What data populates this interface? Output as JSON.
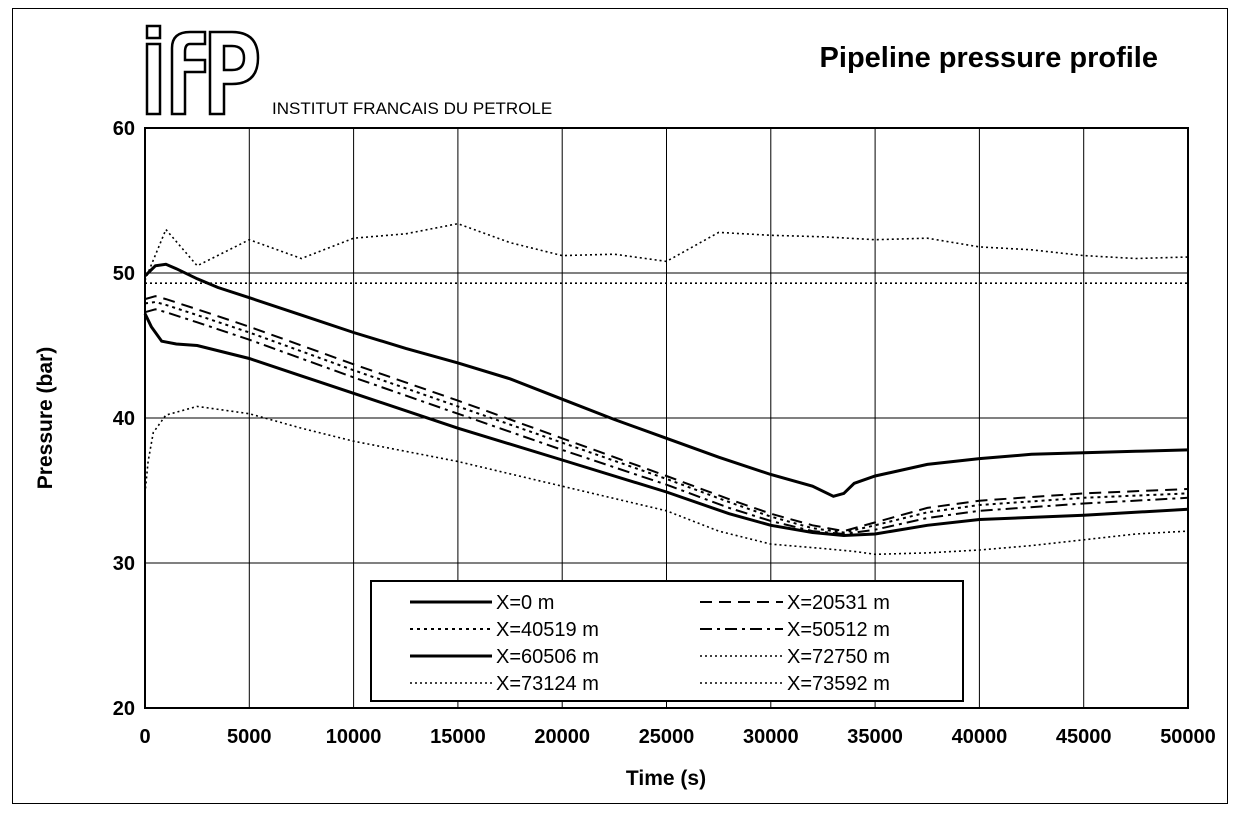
{
  "logo": {
    "text": "ifp",
    "caption": "INSTITUT FRANCAIS DU PETROLE"
  },
  "colors": {
    "ink": "#000000",
    "grid": "#000000",
    "background": "#ffffff"
  },
  "chart_data": {
    "type": "line",
    "title": "Pipeline pressure profile",
    "xlabel": "Time (s)",
    "ylabel": "Pressure (bar)",
    "xlim": [
      0,
      50000
    ],
    "ylim": [
      20,
      60
    ],
    "xticks": [
      0,
      5000,
      10000,
      15000,
      20000,
      25000,
      30000,
      35000,
      40000,
      45000,
      50000
    ],
    "yticks": [
      20,
      30,
      40,
      50,
      60
    ],
    "grid": true,
    "legend_position": "bottom-center",
    "series": [
      {
        "name": "X=0 m",
        "style": "solid",
        "width": 3,
        "x": [
          0,
          500,
          1000,
          1500,
          2500,
          3500,
          5000,
          7500,
          10000,
          12500,
          15000,
          17500,
          20000,
          22500,
          25000,
          27500,
          30000,
          32000,
          33000,
          33500,
          34000,
          35000,
          37500,
          40000,
          42500,
          45000,
          47500,
          50000
        ],
        "y": [
          49.8,
          50.5,
          50.6,
          50.3,
          49.6,
          49.0,
          48.3,
          47.1,
          45.9,
          44.8,
          43.8,
          42.7,
          41.3,
          39.9,
          38.6,
          37.3,
          36.1,
          35.3,
          34.6,
          34.8,
          35.5,
          36.0,
          36.8,
          37.2,
          37.5,
          37.6,
          37.7,
          37.8
        ]
      },
      {
        "name": "X=20531 m",
        "style": "dashed",
        "width": 2,
        "x": [
          0,
          500,
          1000,
          2500,
          5000,
          10000,
          15000,
          20000,
          25000,
          28000,
          30000,
          32000,
          33500,
          35000,
          37500,
          40000,
          45000,
          50000
        ],
        "y": [
          48.2,
          48.4,
          48.2,
          47.5,
          46.3,
          43.7,
          41.2,
          38.6,
          36.0,
          34.4,
          33.4,
          32.6,
          32.2,
          32.8,
          33.8,
          34.3,
          34.8,
          35.1
        ]
      },
      {
        "name": "X=40519 m",
        "style": "dotted",
        "width": 2,
        "x": [
          0,
          500,
          1000,
          2500,
          5000,
          10000,
          15000,
          20000,
          25000,
          28000,
          30000,
          32000,
          33500,
          35000,
          37500,
          40000,
          45000,
          50000
        ],
        "y": [
          47.9,
          48.0,
          47.8,
          47.1,
          45.9,
          43.3,
          40.8,
          38.3,
          35.8,
          34.2,
          33.2,
          32.4,
          32.1,
          32.6,
          33.5,
          34.0,
          34.5,
          34.8
        ]
      },
      {
        "name": "X=50512 m",
        "style": "dashdot",
        "width": 2,
        "x": [
          0,
          500,
          1000,
          2500,
          5000,
          10000,
          15000,
          20000,
          25000,
          28000,
          30000,
          32000,
          33500,
          35000,
          37500,
          40000,
          45000,
          50000
        ],
        "y": [
          47.3,
          47.5,
          47.3,
          46.6,
          45.4,
          42.8,
          40.3,
          37.8,
          35.4,
          33.8,
          32.9,
          32.2,
          32.0,
          32.3,
          33.1,
          33.6,
          34.1,
          34.5
        ]
      },
      {
        "name": "X=60506 m",
        "style": "solid",
        "width": 3,
        "x": [
          0,
          300,
          800,
          1500,
          2500,
          5000,
          7500,
          10000,
          15000,
          20000,
          25000,
          28000,
          30000,
          32000,
          33500,
          35000,
          37500,
          40000,
          45000,
          50000
        ],
        "y": [
          47.2,
          46.3,
          45.3,
          45.1,
          45.0,
          44.1,
          42.9,
          41.7,
          39.3,
          37.1,
          34.9,
          33.4,
          32.6,
          32.1,
          31.9,
          32.0,
          32.6,
          33.0,
          33.3,
          33.7
        ]
      },
      {
        "name": "X=72750 m",
        "style": "finedot",
        "width": 1.6,
        "x": [
          0,
          50000
        ],
        "y": [
          49.3,
          49.3
        ]
      },
      {
        "name": "X=73124 m",
        "style": "finedot",
        "width": 1.6,
        "x": [
          0,
          150,
          400,
          1000,
          2500,
          5000,
          7500,
          10000,
          15000,
          20000,
          25000,
          27500,
          30000,
          32500,
          34000,
          35000,
          37500,
          40000,
          42500,
          45000,
          47500,
          50000
        ],
        "y": [
          34.8,
          37.0,
          39.0,
          40.2,
          40.8,
          40.3,
          39.3,
          38.4,
          37.0,
          35.3,
          33.6,
          32.2,
          31.3,
          31.0,
          30.8,
          30.6,
          30.7,
          30.9,
          31.2,
          31.6,
          32.0,
          32.2
        ]
      },
      {
        "name": "X=73592 m",
        "style": "finedot",
        "width": 1.6,
        "x": [
          0,
          1000,
          2500,
          5000,
          7500,
          10000,
          12500,
          15000,
          17500,
          20000,
          22500,
          25000,
          27500,
          30000,
          32500,
          35000,
          37500,
          40000,
          42500,
          45000,
          47500,
          50000
        ],
        "y": [
          49.5,
          53.0,
          50.5,
          52.3,
          51.0,
          52.4,
          52.7,
          53.4,
          52.1,
          51.2,
          51.3,
          50.8,
          52.8,
          52.6,
          52.5,
          52.3,
          52.4,
          51.8,
          51.6,
          51.2,
          51.0,
          51.1
        ]
      }
    ]
  }
}
